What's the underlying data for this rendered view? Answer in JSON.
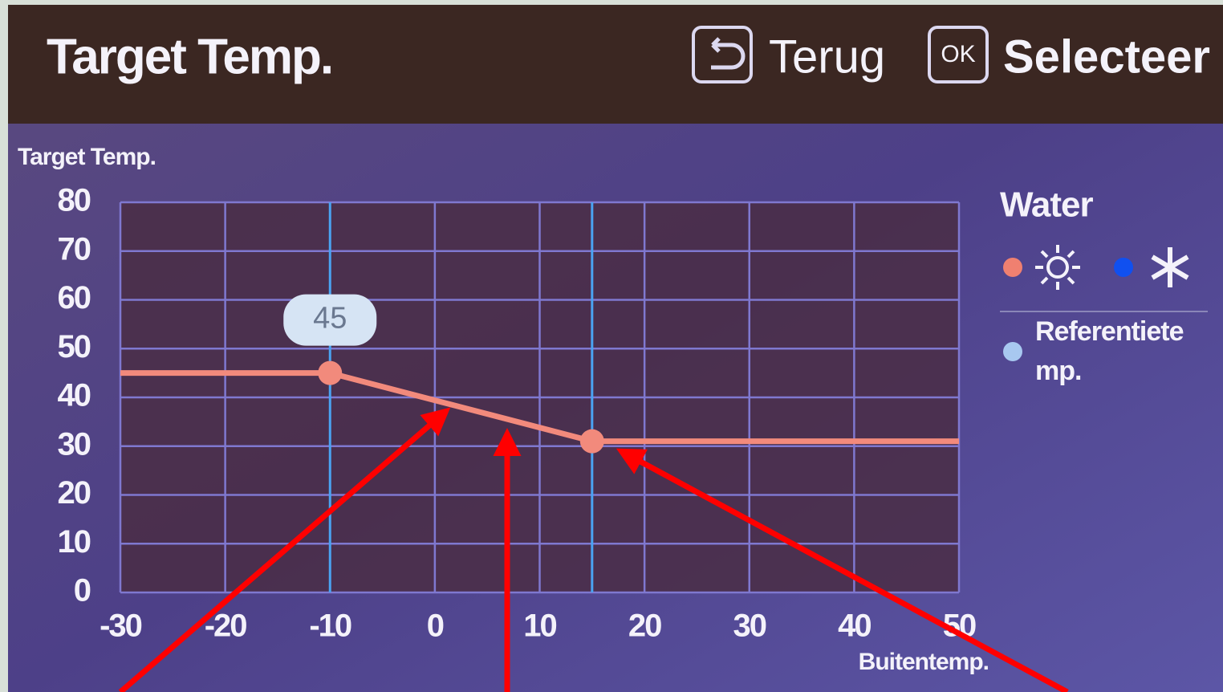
{
  "header": {
    "title": "Target Temp.",
    "back": "Terug",
    "ok_icon": "OK",
    "select": "Selecteer"
  },
  "chart_data": {
    "type": "line",
    "ylabel": "Target Temp.",
    "xlabel": "Buitentemp.",
    "x": [
      -30,
      -10,
      15,
      50
    ],
    "values": [
      45,
      45,
      31,
      31
    ],
    "color": "#f28a7c",
    "xlim": [
      -30,
      50
    ],
    "xticks": [
      -30,
      -20,
      -10,
      0,
      10,
      20,
      30,
      40,
      50
    ],
    "ylim": [
      0,
      80
    ],
    "yticks": [
      0,
      10,
      20,
      30,
      40,
      50,
      60,
      70,
      80
    ],
    "grid": true,
    "vlines": [
      -10,
      15
    ],
    "vline_color": "#4aa3f2",
    "annotations": [
      {
        "text": "45",
        "x": -10,
        "y": 45
      }
    ]
  },
  "legend": {
    "title": "Water",
    "reference": [
      "Referentiete",
      "mp."
    ]
  }
}
